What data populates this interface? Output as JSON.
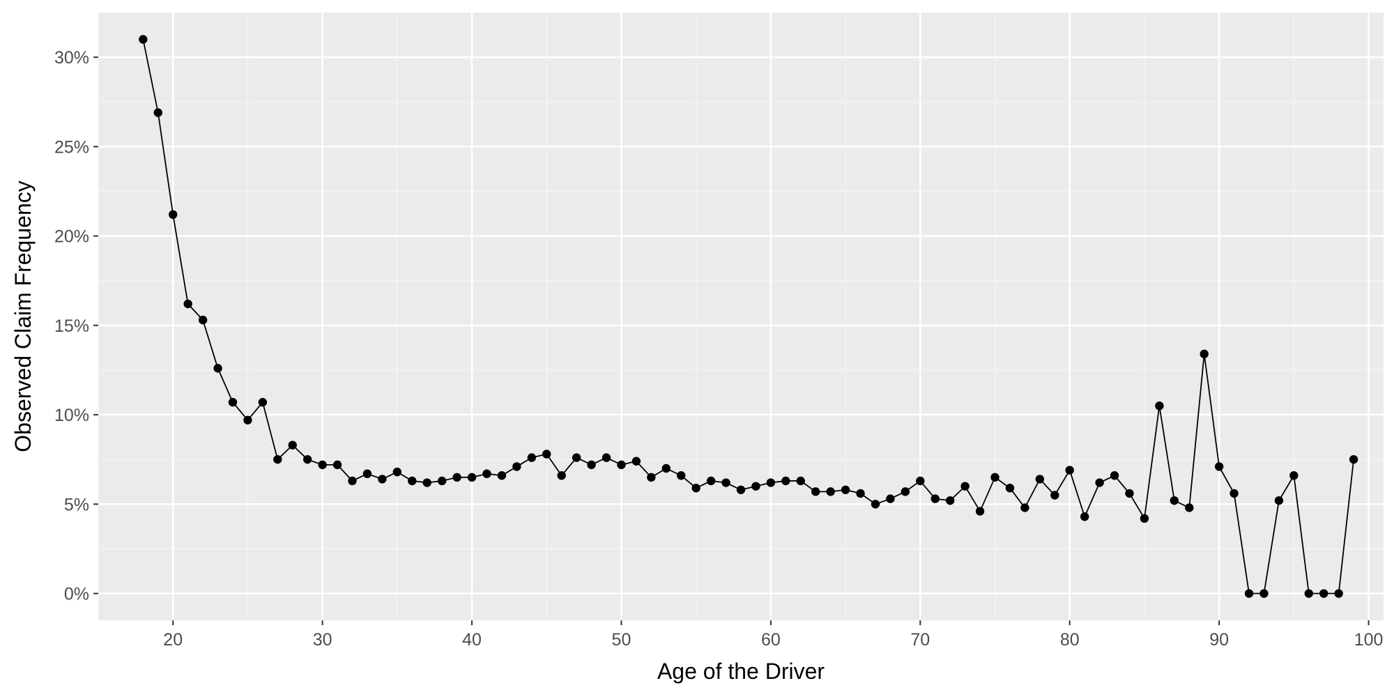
{
  "chart_data": {
    "type": "line",
    "title": "",
    "xlabel": "Age of the Driver",
    "ylabel": "Observed Claim Frequency",
    "xlim": [
      15,
      101
    ],
    "ylim": [
      -0.015,
      0.325
    ],
    "x_ticks": [
      20,
      30,
      40,
      50,
      60,
      70,
      80,
      90,
      100
    ],
    "x_tick_labels": [
      "20",
      "30",
      "40",
      "50",
      "60",
      "70",
      "80",
      "90",
      "100"
    ],
    "y_ticks": [
      0,
      0.05,
      0.1,
      0.15,
      0.2,
      0.25,
      0.3
    ],
    "y_tick_labels": [
      "0%",
      "5%",
      "10%",
      "15%",
      "20%",
      "25%",
      "30%"
    ],
    "grid": true,
    "legend": "none",
    "series": [
      {
        "x": [
          18,
          19,
          20,
          21,
          22,
          23,
          24,
          25,
          26,
          27,
          28,
          29,
          30,
          31,
          32,
          33,
          34,
          35,
          36,
          37,
          38,
          39,
          40,
          41,
          42,
          43,
          44,
          45,
          46,
          47,
          48,
          49,
          50,
          51,
          52,
          53,
          54,
          55,
          56,
          57,
          58,
          59,
          60,
          61,
          62,
          63,
          64,
          65,
          66,
          67,
          68,
          69,
          70,
          71,
          72,
          73,
          74,
          75,
          76,
          77,
          78,
          79,
          80,
          81,
          82,
          83,
          84,
          85,
          86,
          87,
          88,
          89,
          90,
          91,
          92,
          93,
          94,
          95,
          96,
          97,
          98,
          99
        ],
        "y": [
          0.31,
          0.269,
          0.212,
          0.162,
          0.153,
          0.126,
          0.107,
          0.097,
          0.107,
          0.075,
          0.083,
          0.075,
          0.072,
          0.072,
          0.063,
          0.067,
          0.064,
          0.068,
          0.063,
          0.062,
          0.063,
          0.065,
          0.065,
          0.067,
          0.066,
          0.071,
          0.076,
          0.078,
          0.066,
          0.076,
          0.072,
          0.076,
          0.072,
          0.074,
          0.065,
          0.07,
          0.066,
          0.059,
          0.063,
          0.062,
          0.058,
          0.06,
          0.062,
          0.063,
          0.063,
          0.057,
          0.057,
          0.058,
          0.056,
          0.05,
          0.053,
          0.057,
          0.063,
          0.053,
          0.052,
          0.06,
          0.046,
          0.065,
          0.059,
          0.048,
          0.064,
          0.055,
          0.069,
          0.043,
          0.062,
          0.066,
          0.056,
          0.042,
          0.105,
          0.052,
          0.048,
          0.134,
          0.071,
          0.056,
          0.0,
          0.0,
          0.052,
          0.066,
          0.0,
          0.0,
          0.0,
          0.075
        ]
      }
    ]
  }
}
